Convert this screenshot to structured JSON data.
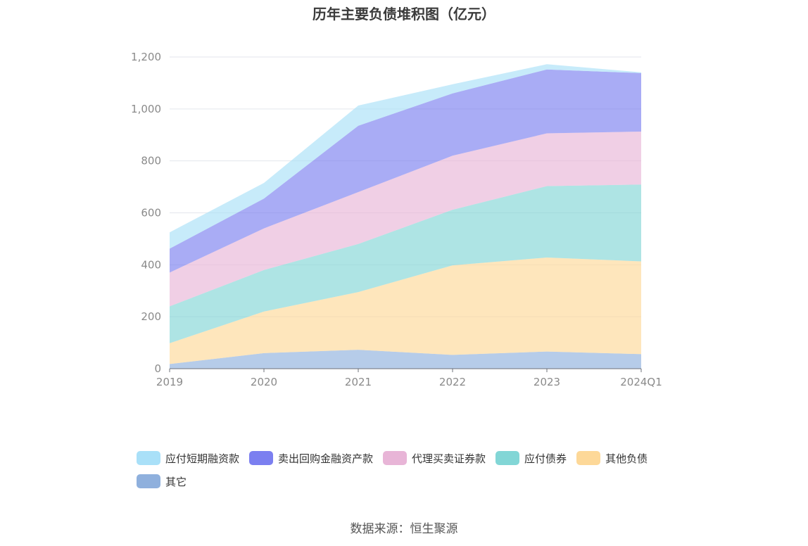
{
  "chart_data": {
    "type": "area",
    "stacked": true,
    "title": "历年主要负债堆积图（亿元）",
    "x": [
      "2019",
      "2020",
      "2021",
      "2022",
      "2023",
      "2024Q1"
    ],
    "ylim": [
      0,
      1200
    ],
    "yticks": [
      0,
      200,
      400,
      600,
      800,
      1000,
      1200
    ],
    "ytick_labels": [
      "0",
      "200",
      "400",
      "600",
      "800",
      "1,000",
      "1,200"
    ],
    "grid": true,
    "legend_position": "bottom",
    "series": [
      {
        "name": "其它",
        "color": "#8fb0dd",
        "values": [
          18,
          60,
          73,
          53,
          66,
          56
        ]
      },
      {
        "name": "其他负债",
        "color": "#fdd898",
        "values": [
          80,
          160,
          222,
          345,
          362,
          357
        ]
      },
      {
        "name": "应付债券",
        "color": "#82d6d6",
        "values": [
          142,
          160,
          185,
          214,
          275,
          296
        ]
      },
      {
        "name": "代理买卖证券款",
        "color": "#e8b5d7",
        "values": [
          130,
          160,
          200,
          208,
          203,
          204
        ]
      },
      {
        "name": "卖出回购金融资产款",
        "color": "#7b7ff0",
        "values": [
          92,
          115,
          255,
          240,
          246,
          225
        ]
      },
      {
        "name": "应付短期融资款",
        "color": "#a9e0f8",
        "values": [
          63,
          60,
          78,
          35,
          20,
          3
        ]
      }
    ],
    "legend_order": [
      "应付短期融资款",
      "卖出回购金融资产款",
      "代理买卖证券款",
      "应付债券",
      "其他负债",
      "其它"
    ]
  },
  "source_note": "数据来源：恒生聚源"
}
